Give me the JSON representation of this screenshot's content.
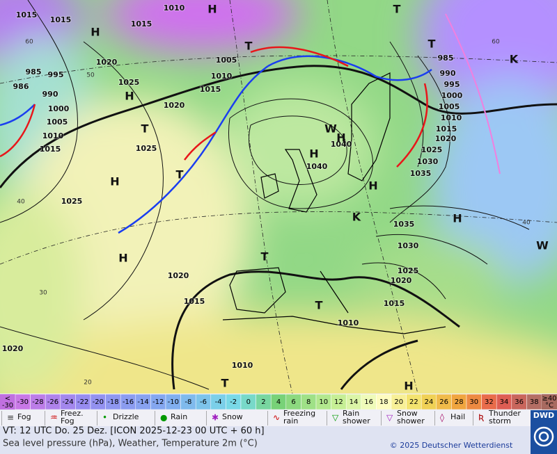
{
  "map": {
    "pressure_labels": [
      "1015",
      "1015",
      "1010",
      "1015",
      "1020",
      "1025",
      "985",
      "995",
      "986",
      "990",
      "1000",
      "1005",
      "1010",
      "1015",
      "1020",
      "1025",
      "1005",
      "1010",
      "1015",
      "1025",
      "1040",
      "1040",
      "985",
      "990",
      "995",
      "1000",
      "1005",
      "1010",
      "1015",
      "1020",
      "1025",
      "1030",
      "1035",
      "1035",
      "1030",
      "1025",
      "1020",
      "1015",
      "1010",
      "1020",
      "1015",
      "1020",
      "1010"
    ],
    "isotherm_labels": [
      "60",
      "50",
      "40",
      "30",
      "20",
      "60",
      "40"
    ],
    "system_labels": [
      "H",
      "H",
      "H",
      "T",
      "H",
      "T",
      "H",
      "T",
      "T",
      "T",
      "H",
      "H",
      "H",
      "H",
      "T",
      "T",
      "T",
      "H",
      "K",
      "K",
      "W",
      "W"
    ]
  },
  "scale": {
    "first": [
      "<",
      "-30"
    ],
    "steps": [
      -30,
      -28,
      -26,
      -24,
      -22,
      -20,
      -18,
      -16,
      -14,
      -12,
      -10,
      -8,
      -6,
      -4,
      -2,
      0,
      2,
      4,
      6,
      8,
      10,
      12,
      14,
      16,
      18,
      20,
      22,
      24,
      26,
      28,
      30,
      32,
      34,
      36,
      38
    ],
    "last": [
      "≥40",
      "°C"
    ]
  },
  "legend": [
    [
      "Fog"
    ],
    [
      "Freez.",
      "Fog"
    ],
    [
      "Drizzle"
    ],
    [
      "Rain"
    ],
    [
      "Snow"
    ],
    [
      "Freezing",
      "rain"
    ],
    [
      "Rain",
      "shower"
    ],
    [
      "Snow",
      "shower"
    ],
    [
      "Hail"
    ],
    [
      "Thunder",
      "storm"
    ]
  ],
  "footer": {
    "valid_time": "VT: 12 UTC Do.  25 Dez. [ICON 2025-12-23  00 UTC + 60 h]",
    "description": "Sea level pressure (hPa), Weather, Temperature 2m (°C)",
    "copyright": "© 2025 Deutscher Wetterdienst",
    "logo": "DWD"
  }
}
